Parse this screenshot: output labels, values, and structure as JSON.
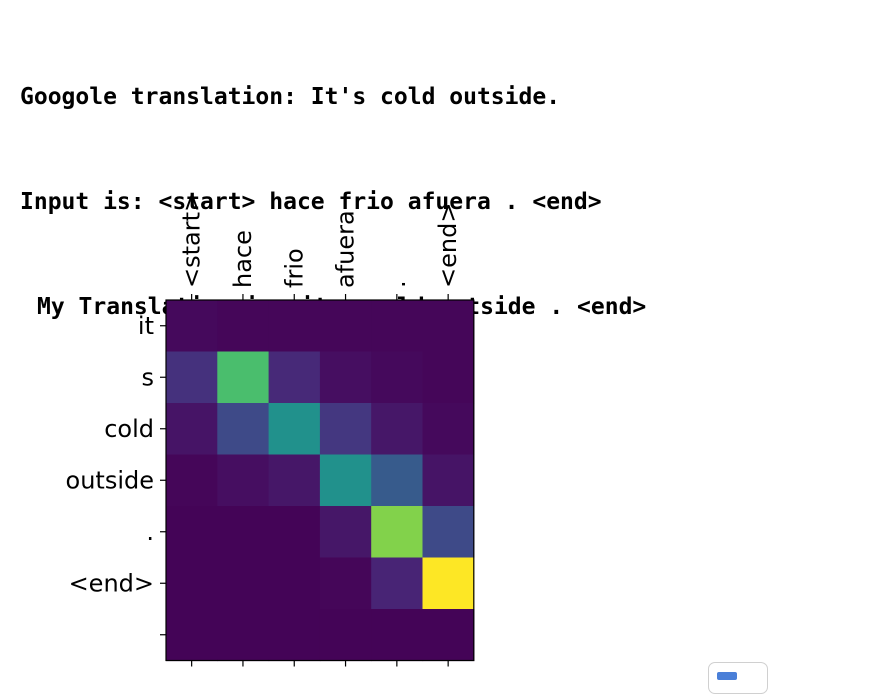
{
  "console": {
    "google_line": "Googole translation: It's cold outside.",
    "input_line": "Input is: <start> hace frio afuera . <end>",
    "translation_line": "My Translation is: it s cold outside . <end>"
  },
  "chart_data": {
    "type": "heatmap",
    "title": "",
    "xlabel": "",
    "ylabel": "",
    "colormap": "viridis",
    "x_tick_position": "top",
    "x": [
      "<start>",
      "hace",
      "frio",
      "afuera",
      ".",
      "<end>"
    ],
    "y": [
      "it",
      "s",
      "cold",
      "outside",
      ".",
      "<end>",
      ""
    ],
    "values": [
      [
        0.03,
        0.02,
        0.02,
        0.02,
        0.02,
        0.02
      ],
      [
        0.18,
        0.78,
        0.15,
        0.05,
        0.03,
        0.02
      ],
      [
        0.07,
        0.28,
        0.63,
        0.2,
        0.08,
        0.03
      ],
      [
        0.02,
        0.05,
        0.08,
        0.63,
        0.36,
        0.07
      ],
      [
        0.01,
        0.01,
        0.01,
        0.08,
        0.86,
        0.28
      ],
      [
        0.01,
        0.01,
        0.01,
        0.02,
        0.13,
        1.0
      ],
      [
        0.01,
        0.01,
        0.01,
        0.01,
        0.01,
        0.01
      ]
    ],
    "grid": false,
    "legend": "none"
  },
  "widget": {
    "icon": "widget-toggle-icon",
    "accent_color": "#4a7fd8"
  }
}
